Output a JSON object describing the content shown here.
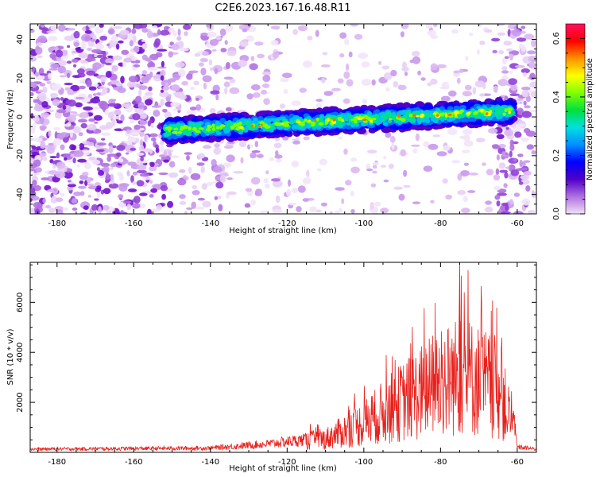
{
  "figure": {
    "title": "C2E6.2023.167.16.48.R11"
  },
  "chart_data": [
    {
      "type": "heatmap",
      "xlabel": "Height of straight line (km)",
      "ylabel": "Frequency (Hz)",
      "xlim": [
        -187,
        -55
      ],
      "ylim": [
        -50,
        48
      ],
      "xticks": [
        -180,
        -160,
        -140,
        -120,
        -100,
        -80,
        -60
      ],
      "yticks": [
        -40,
        -20,
        0,
        20,
        40
      ],
      "colorbar": {
        "label": "Normalized spectral amplitude",
        "range": [
          0.0,
          0.65
        ],
        "ticks": [
          0.0,
          0.2,
          0.4,
          0.6
        ],
        "colormap": [
          "#f0e0f8",
          "#b070e0",
          "#5000c8",
          "#0000ff",
          "#0090ff",
          "#00e0e0",
          "#00e040",
          "#80ff00",
          "#ffff00",
          "#ff9000",
          "#ff0000",
          "#ff1060"
        ]
      },
      "signal_band": {
        "x_start": -152,
        "x_end": -61,
        "freq_at_start": -7,
        "freq_at_end": 3,
        "half_width_hz": 6
      }
    },
    {
      "type": "line",
      "xlabel": "Height of straight line (km)",
      "ylabel": "SNR (10 * v/v)",
      "xlim": [
        -187,
        -55
      ],
      "ylim": [
        0,
        7600
      ],
      "xticks": [
        -180,
        -160,
        -140,
        -120,
        -100,
        -80,
        -60
      ],
      "yticks": [
        2000,
        4000,
        6000
      ],
      "line_color": "#e8211c",
      "envelope": [
        {
          "x": -187,
          "y": 150
        },
        {
          "x": -140,
          "y": 200
        },
        {
          "x": -125,
          "y": 400
        },
        {
          "x": -110,
          "y": 700
        },
        {
          "x": -100,
          "y": 1500
        },
        {
          "x": -90,
          "y": 2600
        },
        {
          "x": -80,
          "y": 3600
        },
        {
          "x": -74,
          "y": 4000
        },
        {
          "x": -65,
          "y": 3300
        },
        {
          "x": -61,
          "y": 1400
        },
        {
          "x": -60,
          "y": 250
        },
        {
          "x": -55,
          "y": 150
        }
      ],
      "peak": {
        "x": -75,
        "y": 7500
      }
    }
  ]
}
